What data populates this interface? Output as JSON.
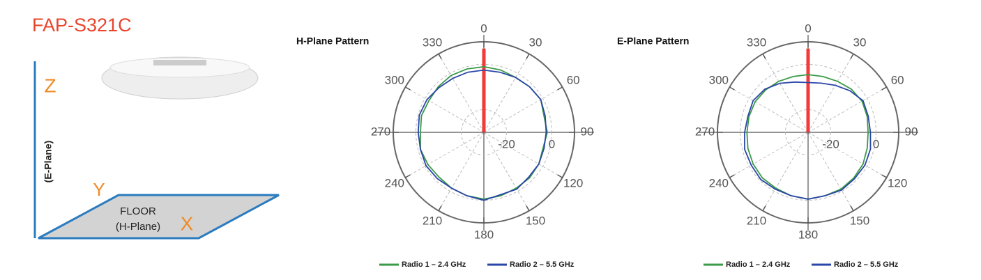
{
  "title": "FAP-S321C",
  "diagram": {
    "z": "Z",
    "e_plane": "(E-Plane)",
    "y": "Y",
    "floor": "FLOOR",
    "h_plane": "(H-Plane)",
    "x": "X"
  },
  "chart_data": [
    {
      "type": "polar",
      "title": "H-Plane Pattern",
      "theta": [
        0,
        15,
        30,
        45,
        60,
        75,
        90,
        105,
        120,
        135,
        150,
        165,
        180,
        195,
        210,
        225,
        240,
        255,
        270,
        285,
        300,
        315,
        330,
        345
      ],
      "rlim": [
        -30,
        10
      ],
      "rticks": [
        -20,
        0
      ],
      "thetaticks": [
        0,
        30,
        60,
        90,
        120,
        150,
        180,
        210,
        240,
        270,
        300,
        330
      ],
      "marker": {
        "theta": 0,
        "value": 7,
        "color": "#f23a3a"
      },
      "series": [
        {
          "name": "Radio 1 – 2.4 GHz",
          "color": "#3a9a48",
          "values": [
            -1,
            -1.5,
            -2,
            -1.5,
            -1,
            -2.5,
            -2,
            -3,
            -2,
            -1.5,
            -1.5,
            -1,
            -0.5,
            -1,
            -1.5,
            -2,
            -1.5,
            -1,
            -2,
            -1.5,
            -2,
            -1.5,
            -1,
            -1
          ]
        },
        {
          "name": "Radio 2 – 5.5 GHz",
          "color": "#2a46a8",
          "values": [
            -2.5,
            -2.5,
            -2,
            -1.5,
            -1,
            -2,
            -2.5,
            -2.5,
            -2,
            -2,
            -1,
            -1.5,
            0,
            -1,
            -1.5,
            -1,
            -0.5,
            -1,
            -1,
            -0.5,
            -1,
            -2,
            -2.5,
            -2.5
          ]
        }
      ]
    },
    {
      "type": "polar",
      "title": "E-Plane Pattern",
      "theta": [
        0,
        15,
        30,
        45,
        60,
        75,
        90,
        105,
        120,
        135,
        150,
        165,
        180,
        195,
        210,
        225,
        240,
        255,
        270,
        285,
        300,
        315,
        330,
        345
      ],
      "rlim": [
        -30,
        10
      ],
      "rticks": [
        -20,
        0
      ],
      "thetaticks": [
        0,
        30,
        60,
        90,
        120,
        150,
        180,
        210,
        240,
        270,
        300,
        330
      ],
      "marker": {
        "theta": 0,
        "value": 7,
        "color": "#f23a3a"
      },
      "series": [
        {
          "name": "Radio 1 – 2.4 GHz",
          "color": "#3a9a48",
          "values": [
            -4.5,
            -4.5,
            -4,
            -3,
            -2.5,
            -3,
            -3.5,
            -3,
            -2,
            -1.5,
            -1,
            -1,
            -0.5,
            -1,
            -1.5,
            -1.5,
            -2,
            -2.5,
            -3,
            -3,
            -3,
            -3.5,
            -4,
            -4.5
          ]
        },
        {
          "name": "Radio 2 – 5.5 GHz",
          "color": "#2a46a8",
          "values": [
            -8,
            -7.5,
            -6,
            -4,
            -2,
            -2.5,
            -2.5,
            -1.5,
            -1,
            -1,
            -0.5,
            -1,
            -0.5,
            -1,
            -1,
            -0.5,
            -1,
            -1,
            -2,
            -2.5,
            -2,
            -3,
            -5,
            -7
          ]
        }
      ]
    }
  ]
}
